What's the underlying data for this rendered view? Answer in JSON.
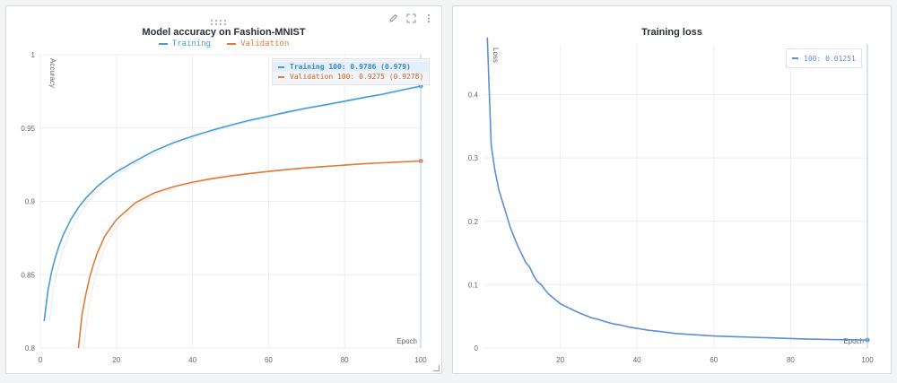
{
  "colors": {
    "training": "#4a9bd4",
    "validation": "#e07b39",
    "loss": "#5b8fd4",
    "grid": "#eceef1",
    "cursor": "#a9c9ec"
  },
  "chart_data": [
    {
      "type": "line",
      "title": "Model accuracy on Fashion-MNIST",
      "xlabel": "Epoch",
      "ylabel": "Accuracy",
      "xlim": [
        0,
        100
      ],
      "ylim": [
        0.8,
        1.0
      ],
      "xticks": [
        0,
        20,
        40,
        60,
        80,
        100
      ],
      "yticks": [
        0.8,
        0.85,
        0.9,
        0.95,
        1
      ],
      "ytick_labels": [
        "0.8",
        "0.85",
        "0.9",
        "0.95",
        "1"
      ],
      "grid": true,
      "legend": "top-center",
      "series": [
        {
          "name": "Training",
          "x": [
            1,
            2,
            3,
            4,
            5,
            6,
            8,
            10,
            12,
            15,
            18,
            20,
            25,
            30,
            35,
            40,
            45,
            50,
            55,
            60,
            65,
            70,
            75,
            80,
            85,
            90,
            95,
            100
          ],
          "values": [
            0.8183,
            0.8393,
            0.8525,
            0.8624,
            0.8703,
            0.877,
            0.8876,
            0.8958,
            0.9024,
            0.9103,
            0.9165,
            0.9201,
            0.9276,
            0.9345,
            0.94,
            0.9444,
            0.9484,
            0.952,
            0.9553,
            0.9581,
            0.961,
            0.9636,
            0.9659,
            0.9683,
            0.9708,
            0.9731,
            0.9759,
            0.9786
          ]
        },
        {
          "name": "Validation",
          "x": [
            10,
            11,
            12,
            13,
            14,
            15,
            17,
            20,
            25,
            30,
            35,
            40,
            45,
            50,
            55,
            60,
            65,
            70,
            75,
            80,
            85,
            90,
            95,
            100
          ],
          "values": [
            0.8,
            0.8235,
            0.8371,
            0.8485,
            0.8575,
            0.865,
            0.8766,
            0.8876,
            0.899,
            0.9058,
            0.91,
            0.9131,
            0.9155,
            0.9174,
            0.919,
            0.9204,
            0.9218,
            0.9229,
            0.9238,
            0.9247,
            0.9256,
            0.9263,
            0.927,
            0.9275
          ]
        }
      ],
      "tooltip": {
        "rows": [
          {
            "series": "training",
            "text": "Training 100: 0.9786 (0.979)"
          },
          {
            "series": "validation",
            "text": "Validation 100: 0.9275 (0.9278)"
          }
        ]
      }
    },
    {
      "type": "line",
      "title": "Training loss",
      "xlabel": "Epoch",
      "ylabel": "Loss",
      "xlim": [
        0,
        100
      ],
      "ylim": [
        0,
        0.48
      ],
      "xticks": [
        20,
        40,
        60,
        80,
        100
      ],
      "yticks": [
        0,
        0.1,
        0.2,
        0.3,
        0.4
      ],
      "ytick_labels": [
        "0",
        "0.1",
        "0.2",
        "0.3",
        "0.4"
      ],
      "grid": true,
      "legend": "none",
      "series": [
        {
          "x": [
            1,
            2,
            3,
            4,
            5,
            6,
            7,
            8,
            9,
            10,
            11,
            12,
            13,
            14,
            15,
            16,
            17,
            18,
            19,
            20,
            22,
            24,
            26,
            28,
            30,
            32,
            34,
            36,
            38,
            40,
            43,
            46,
            50,
            55,
            60,
            65,
            70,
            75,
            80,
            85,
            90,
            95,
            100
          ],
          "values": [
            0.49,
            0.32,
            0.28,
            0.25,
            0.23,
            0.21,
            0.19,
            0.175,
            0.16,
            0.148,
            0.135,
            0.128,
            0.115,
            0.105,
            0.1,
            0.092,
            0.085,
            0.08,
            0.075,
            0.07,
            0.064,
            0.058,
            0.053,
            0.048,
            0.045,
            0.041,
            0.038,
            0.036,
            0.033,
            0.031,
            0.028,
            0.026,
            0.023,
            0.021,
            0.019,
            0.018,
            0.017,
            0.016,
            0.015,
            0.014,
            0.0135,
            0.013,
            0.01251
          ]
        }
      ],
      "tooltip": {
        "rows": [
          {
            "series": "loss",
            "text": "100: 0.01251"
          }
        ]
      }
    }
  ]
}
